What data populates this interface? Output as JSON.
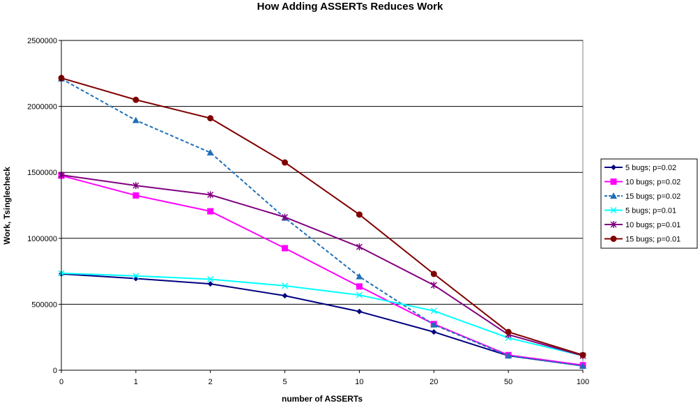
{
  "chart_data": {
    "type": "line",
    "title": "How Adding ASSERTs Reduces Work",
    "xlabel": "number of ASSERTs",
    "ylabel": "Work, Tsinglecheck",
    "categories": [
      "0",
      "1",
      "2",
      "5",
      "10",
      "20",
      "50",
      "100"
    ],
    "ylim": [
      0,
      2500000
    ],
    "yticks": [
      "0",
      "500000",
      "1000000",
      "1500000",
      "2000000",
      "2500000"
    ],
    "grid": "horizontal",
    "legend_position": "right",
    "series": [
      {
        "name": "5 bugs; p=0.02",
        "color": "#000080",
        "marker": "diamond",
        "dashed": false,
        "values": [
          730000,
          695000,
          655000,
          565000,
          445000,
          290000,
          110000,
          35000
        ]
      },
      {
        "name": "10 bugs; p=0.02",
        "color": "#ff00ff",
        "marker": "square",
        "dashed": false,
        "values": [
          1475000,
          1325000,
          1205000,
          925000,
          635000,
          350000,
          115000,
          38000
        ]
      },
      {
        "name": "15 bugs; p=0.02",
        "color": "#1f6fb8",
        "marker": "triangle",
        "dashed": true,
        "values": [
          2210000,
          1895000,
          1650000,
          1155000,
          710000,
          345000,
          110000,
          32000
        ]
      },
      {
        "name": "5 bugs; p=0.01",
        "color": "#00ffff",
        "marker": "x",
        "dashed": false,
        "values": [
          735000,
          715000,
          690000,
          640000,
          570000,
          450000,
          245000,
          110000
        ]
      },
      {
        "name": "10 bugs; p=0.01",
        "color": "#800080",
        "marker": "star",
        "dashed": false,
        "values": [
          1480000,
          1400000,
          1330000,
          1160000,
          935000,
          645000,
          270000,
          110000
        ]
      },
      {
        "name": "15 bugs; p=0.01",
        "color": "#800000",
        "marker": "circle",
        "dashed": false,
        "values": [
          2215000,
          2050000,
          1910000,
          1575000,
          1180000,
          730000,
          290000,
          115000
        ]
      }
    ]
  }
}
